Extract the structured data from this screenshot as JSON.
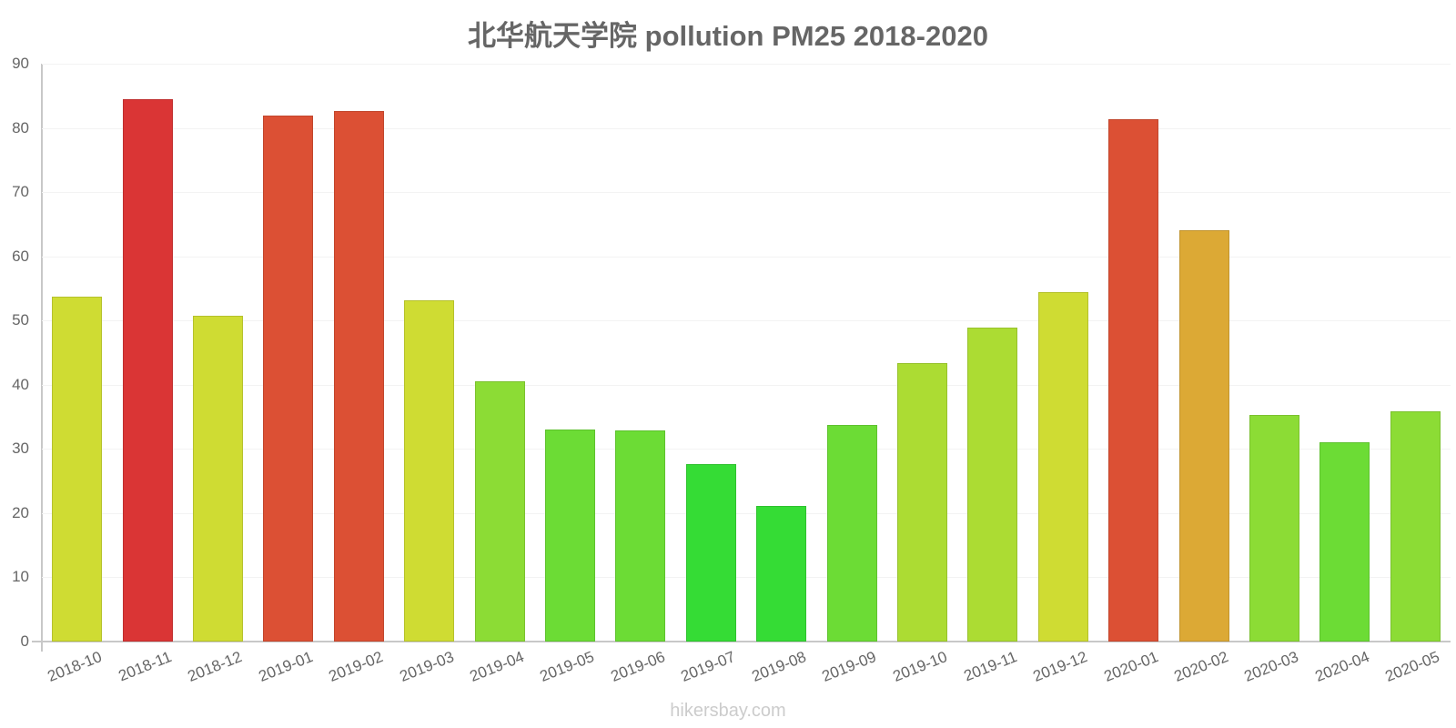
{
  "title": "北华航天学院 pollution PM25 2018-2020",
  "footer": "hikersbay.com",
  "chart_data": {
    "type": "bar",
    "title": "北华航天学院 pollution PM25 2018-2020",
    "xlabel": "",
    "ylabel": "",
    "ylim": [
      0,
      90
    ],
    "yticks": [
      0,
      10,
      20,
      30,
      40,
      50,
      60,
      70,
      80,
      90
    ],
    "grid": true,
    "legend": null,
    "categories": [
      "2018-10",
      "2018-11",
      "2018-12",
      "2019-01",
      "2019-02",
      "2019-03",
      "2019-04",
      "2019-05",
      "2019-06",
      "2019-07",
      "2019-08",
      "2019-09",
      "2019-10",
      "2019-11",
      "2019-12",
      "2020-01",
      "2020-02",
      "2020-03",
      "2020-04",
      "2020-05"
    ],
    "values": [
      53.7,
      84.5,
      50.7,
      81.9,
      82.6,
      53.1,
      40.5,
      33.0,
      32.9,
      27.6,
      21.1,
      33.7,
      43.4,
      48.9,
      54.4,
      81.3,
      64.1,
      35.3,
      31.0,
      35.9
    ],
    "colors": [
      "#cfdc33",
      "#da3535",
      "#cfdc33",
      "#dc5034",
      "#dc5034",
      "#cfdc33",
      "#8cdc35",
      "#6cdc35",
      "#6cdc35",
      "#35dc35",
      "#35dc35",
      "#6cdc35",
      "#acdc33",
      "#acdc33",
      "#cfdc33",
      "#dc5034",
      "#dca935",
      "#8cdc35",
      "#6cdc35",
      "#8cdc35"
    ]
  }
}
